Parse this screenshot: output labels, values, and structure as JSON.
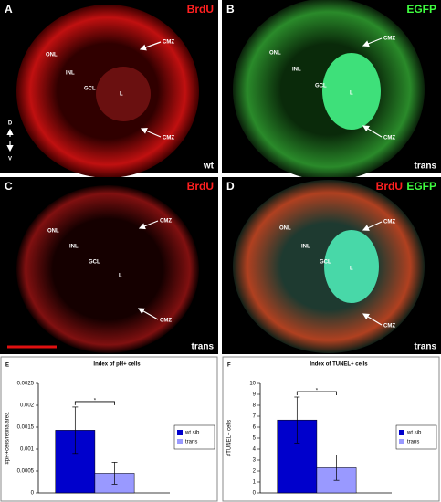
{
  "panels": [
    {
      "letter": "A",
      "stain": [
        "BrdU"
      ],
      "genotype": "wt",
      "labels": [
        "ONL",
        "INL",
        "GCL",
        "L"
      ],
      "cmz": [
        "CMZ",
        "CMZ"
      ],
      "orientation": [
        "D",
        "V"
      ]
    },
    {
      "letter": "B",
      "stain": [
        "EGFP"
      ],
      "genotype": "trans",
      "labels": [
        "ONL",
        "INL",
        "GCL",
        "L"
      ],
      "cmz": [
        "CMZ",
        "CMZ"
      ]
    },
    {
      "letter": "C",
      "stain": [
        "BrdU"
      ],
      "genotype": "trans",
      "labels": [
        "ONL",
        "INL",
        "GCL",
        "L"
      ],
      "cmz": [
        "CMZ",
        "CMZ"
      ]
    },
    {
      "letter": "D",
      "stain": [
        "BrdU",
        "EGFP"
      ],
      "genotype": "trans",
      "labels": [
        "ONL",
        "INL",
        "GCL",
        "L"
      ],
      "cmz": [
        "CMZ",
        "CMZ"
      ]
    }
  ],
  "chart_data": [
    {
      "type": "bar",
      "panel_letter": "E",
      "title": "Index of pH+ cells",
      "y_label": "#pH+cells/retina area",
      "ylim": [
        0,
        0.0025
      ],
      "yticks": [
        0,
        0.0005,
        0.001,
        0.0015,
        0.002,
        0.0025
      ],
      "series": [
        {
          "name": "wt sib",
          "color": "#0000cc",
          "values": [
            0.00143
          ],
          "errors": [
            0.00053
          ]
        },
        {
          "name": "trans",
          "color": "#9999ff",
          "values": [
            0.00045
          ],
          "errors": [
            0.00025
          ]
        }
      ],
      "annotation": "*",
      "legend": "right"
    },
    {
      "type": "bar",
      "panel_letter": "F",
      "title": "Index of TUNEL+ cells",
      "y_label": "#TUNEL+ cells",
      "ylim": [
        0,
        10
      ],
      "yticks": [
        0,
        1,
        2,
        3,
        4,
        5,
        6,
        7,
        8,
        9,
        10
      ],
      "series": [
        {
          "name": "wt sib",
          "color": "#0000cc",
          "values": [
            6.65
          ],
          "errors": [
            2.1
          ]
        },
        {
          "name": "trans",
          "color": "#9999ff",
          "values": [
            2.3
          ],
          "errors": [
            1.15
          ]
        }
      ],
      "annotation": "*",
      "legend": "right"
    }
  ]
}
